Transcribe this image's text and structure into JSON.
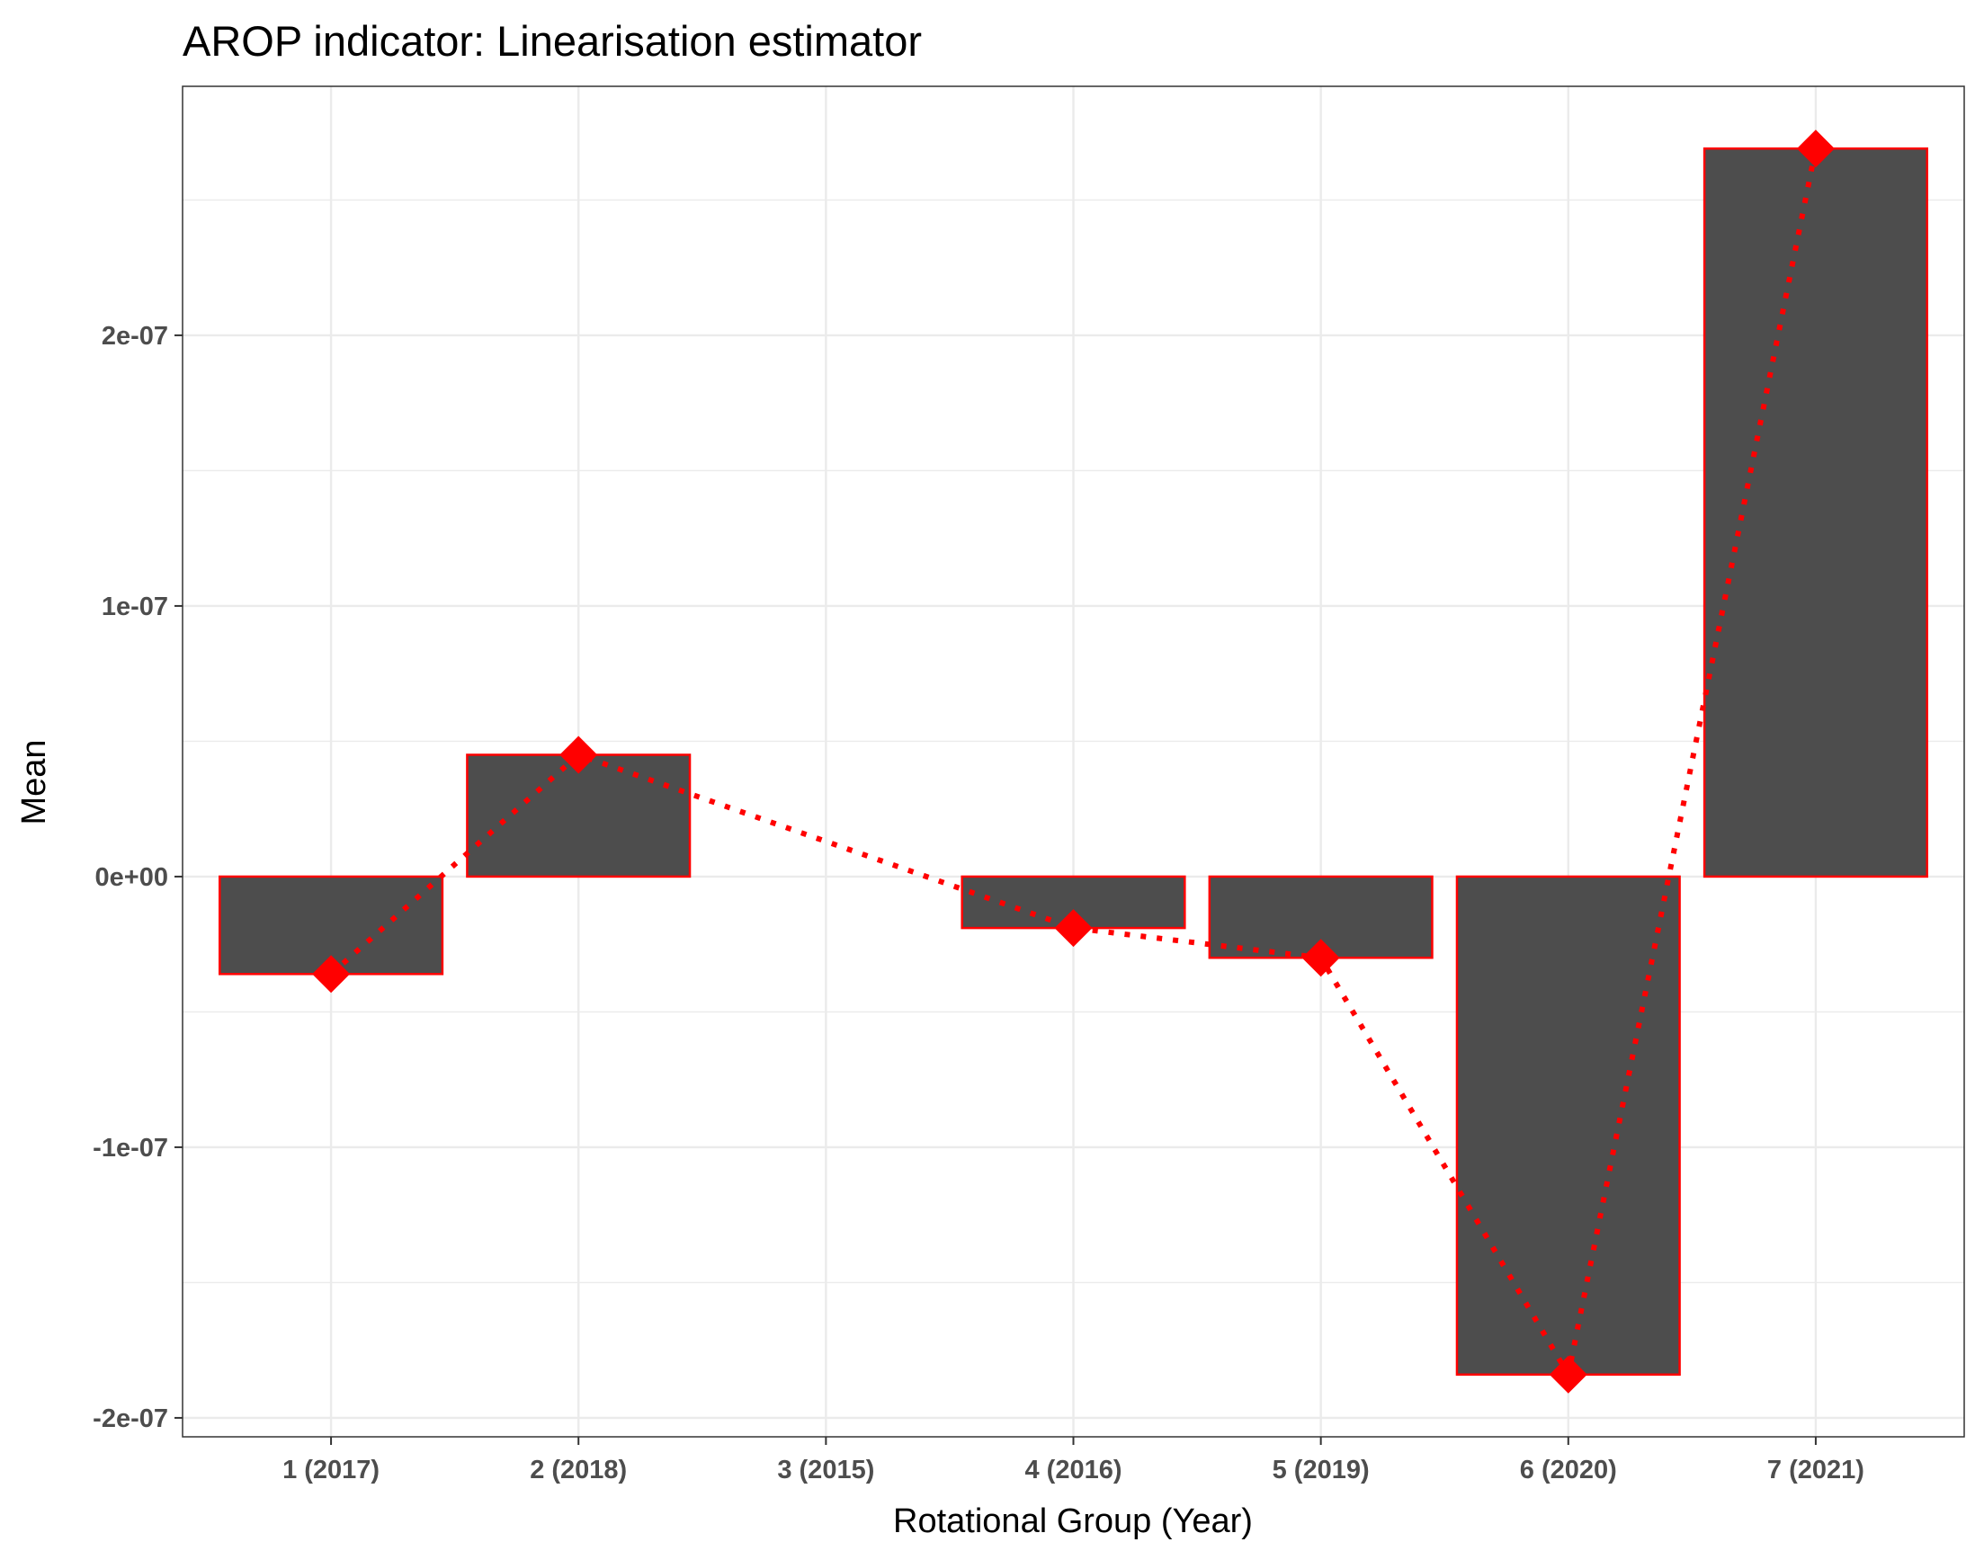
{
  "chart_data": {
    "type": "bar",
    "title": "AROP indicator: Linearisation estimator",
    "xlabel": "Rotational Group (Year)",
    "ylabel": "Mean",
    "categories": [
      "1 (2017)",
      "2 (2018)",
      "3 (2015)",
      "4 (2016)",
      "5 (2019)",
      "6 (2020)",
      "7 (2021)"
    ],
    "values": [
      -3.6e-08,
      4.5e-08,
      null,
      -1.9e-08,
      -3e-08,
      -1.84e-07,
      2.69e-07
    ],
    "line_overlay": {
      "style": "dotted",
      "marker": "diamond",
      "values": [
        -3.6e-08,
        4.5e-08,
        null,
        -1.9e-08,
        -3e-08,
        -1.84e-07,
        2.69e-07
      ]
    },
    "yticks": [
      -2e-07,
      -1e-07,
      0,
      1e-07,
      2e-07
    ],
    "ytick_labels": [
      "-2e-07",
      "-1e-07",
      "0e+00",
      "1e-07",
      "2e-07"
    ],
    "ylim": [
      -2.07e-07,
      2.92e-07
    ],
    "grid": true,
    "colors": {
      "bar_fill": "#4d4d4d",
      "bar_outline": "#ff0000",
      "marker": "#ff0000",
      "line": "#ff0000",
      "grid": "#ebebeb",
      "panel_border": "#333333"
    }
  }
}
